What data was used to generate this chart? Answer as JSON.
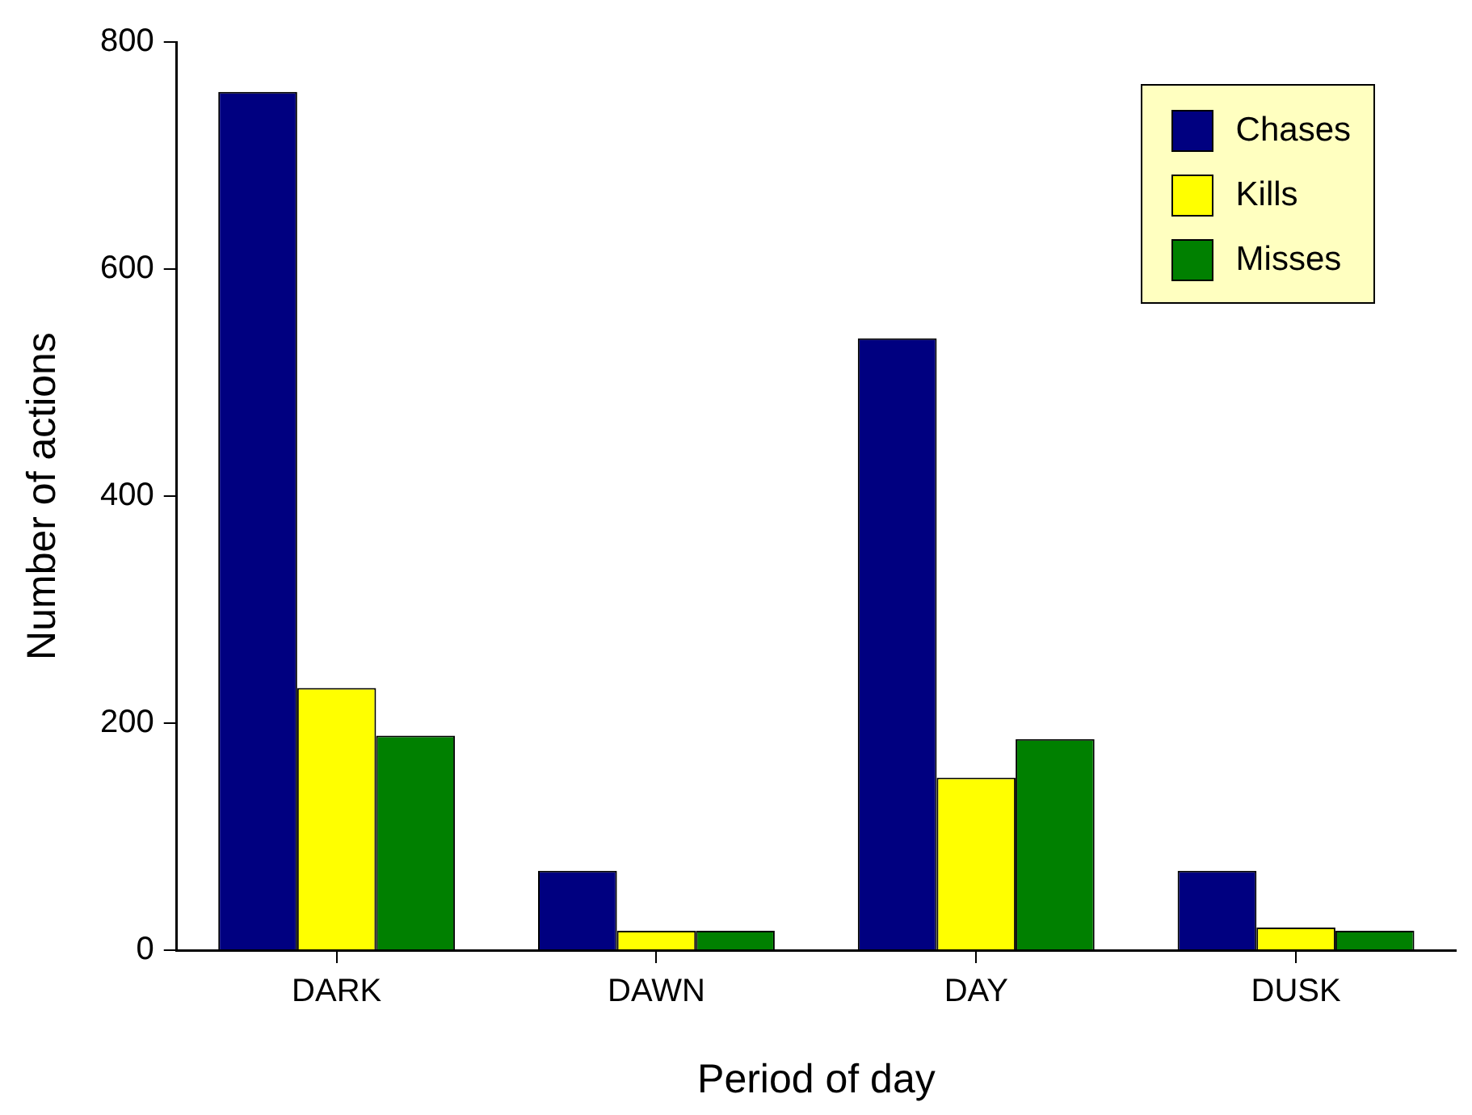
{
  "chart_data": {
    "type": "bar",
    "xlabel": "Period of day",
    "ylabel": "Number of actions",
    "categories": [
      "DARK",
      "DAWN",
      "DAY",
      "DUSK"
    ],
    "series": [
      {
        "name": "Chases",
        "color": "#000080",
        "values": [
          756,
          70,
          539,
          70
        ]
      },
      {
        "name": "Kills",
        "color": "#ffff00",
        "values": [
          231,
          17,
          152,
          20
        ]
      },
      {
        "name": "Misses",
        "color": "#008000",
        "values": [
          189,
          17,
          186,
          17
        ]
      }
    ],
    "ylim": [
      0,
      800
    ],
    "yticks": [
      0,
      200,
      400,
      600,
      800
    ],
    "grid": false,
    "legend": "top right"
  }
}
